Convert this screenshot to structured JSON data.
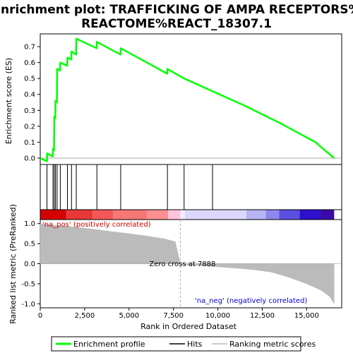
{
  "chart_data": {
    "type": "line",
    "title_line1": "Enrichment plot: TRAFFICKING OF AMPA RECEPTORS%",
    "title_line2": "REACTOME%REACT_18307.1",
    "top_panel": {
      "ylabel": "Enrichment score (ES)",
      "ylim": [
        -0.04,
        0.78
      ],
      "yticks": [
        "0.0",
        "0.1",
        "0.2",
        "0.3",
        "0.4",
        "0.5",
        "0.6",
        "0.7"
      ],
      "ytick_values": [
        0.0,
        0.1,
        0.2,
        0.3,
        0.4,
        0.5,
        0.6,
        0.7
      ],
      "series_name": "Enrichment profile",
      "color": "#00ff00",
      "points": [
        [
          0,
          0.0
        ],
        [
          380,
          -0.02
        ],
        [
          390,
          0.03
        ],
        [
          700,
          0.01
        ],
        [
          720,
          0.06
        ],
        [
          780,
          0.05
        ],
        [
          790,
          0.26
        ],
        [
          850,
          0.25
        ],
        [
          860,
          0.36
        ],
        [
          940,
          0.35
        ],
        [
          950,
          0.56
        ],
        [
          1120,
          0.55
        ],
        [
          1130,
          0.6
        ],
        [
          1520,
          0.58
        ],
        [
          1530,
          0.63
        ],
        [
          1750,
          0.62
        ],
        [
          1760,
          0.67
        ],
        [
          2020,
          0.65
        ],
        [
          2030,
          0.75
        ],
        [
          3180,
          0.69
        ],
        [
          3190,
          0.73
        ],
        [
          4520,
          0.65
        ],
        [
          4530,
          0.69
        ],
        [
          7150,
          0.53
        ],
        [
          7160,
          0.56
        ],
        [
          8100,
          0.5
        ],
        [
          9700,
          0.42
        ],
        [
          11500,
          0.33
        ],
        [
          13500,
          0.22
        ],
        [
          15500,
          0.1
        ],
        [
          16550,
          0.0
        ]
      ]
    },
    "hits_panel": {
      "series_name": "Hits",
      "positions": [
        380,
        720,
        790,
        860,
        950,
        1130,
        1530,
        1760,
        2030,
        3190,
        4530,
        7160,
        8100,
        9700
      ]
    },
    "ranked_panel": {
      "ylabel": "Ranked list metric (PreRanked)",
      "xlabel": "Rank in Ordered Dataset",
      "ylim": [
        -1.1,
        1.1
      ],
      "yticks": [
        "1.0",
        "0.5",
        "0.0",
        "-0.5",
        "-1.0"
      ],
      "ytick_values": [
        1.0,
        0.5,
        0.0,
        -0.5,
        -1.0
      ],
      "series_name": "Ranking metric scores",
      "curve": [
        [
          0,
          1.0
        ],
        [
          300,
          0.98
        ],
        [
          1000,
          0.95
        ],
        [
          2000,
          0.91
        ],
        [
          3000,
          0.86
        ],
        [
          4000,
          0.8
        ],
        [
          5000,
          0.75
        ],
        [
          6000,
          0.69
        ],
        [
          7000,
          0.62
        ],
        [
          7600,
          0.55
        ],
        [
          7888,
          0.0
        ],
        [
          8000,
          -0.02
        ],
        [
          9000,
          -0.05
        ],
        [
          10000,
          -0.08
        ],
        [
          11000,
          -0.11
        ],
        [
          12000,
          -0.15
        ],
        [
          13000,
          -0.21
        ],
        [
          14000,
          -0.34
        ],
        [
          15000,
          -0.5
        ],
        [
          15800,
          -0.66
        ],
        [
          16300,
          -0.82
        ],
        [
          16550,
          -1.0
        ]
      ],
      "zero_cross_label": "Zero cross at 7888",
      "zero_cross": 7888,
      "pos_label": "'na_pos' (positively correlated)",
      "neg_label": "'na_neg' (negatively correlated)",
      "pos_color": "#cc0000",
      "neg_color": "#0000cc"
    },
    "xlim": [
      0,
      16550
    ],
    "xticks": [
      "0",
      "2,500",
      "5,000",
      "7,500",
      "10,000",
      "12,500",
      "15,000"
    ],
    "xtick_values": [
      0,
      2500,
      5000,
      7500,
      10000,
      12500,
      15000
    ],
    "heatbar": [
      {
        "from": 0,
        "to": 1450,
        "color": "#d40000"
      },
      {
        "from": 1450,
        "to": 2950,
        "color": "#e83838"
      },
      {
        "from": 2950,
        "to": 4100,
        "color": "#f25757"
      },
      {
        "from": 4100,
        "to": 6000,
        "color": "#f77676"
      },
      {
        "from": 6000,
        "to": 7200,
        "color": "#fa9090"
      },
      {
        "from": 7200,
        "to": 7888,
        "color": "#fdc4dc"
      },
      {
        "from": 7888,
        "to": 8150,
        "color": "#f4ecfa"
      },
      {
        "from": 8150,
        "to": 11600,
        "color": "#dcd8fb"
      },
      {
        "from": 11600,
        "to": 12700,
        "color": "#b8b4f6"
      },
      {
        "from": 12700,
        "to": 13450,
        "color": "#8d87ee"
      },
      {
        "from": 13450,
        "to": 14600,
        "color": "#5a4fe0"
      },
      {
        "from": 14600,
        "to": 15800,
        "color": "#2c10cc"
      },
      {
        "from": 15800,
        "to": 16550,
        "color": "#3a0aa8"
      }
    ],
    "legend": {
      "items": [
        "Enrichment profile",
        "Hits",
        "Ranking metric scores"
      ]
    }
  }
}
